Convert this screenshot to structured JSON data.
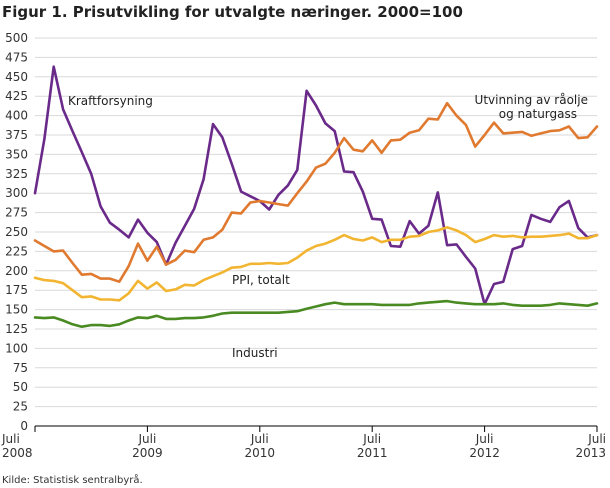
{
  "chart_data": {
    "type": "line",
    "title": "Figur 1. Prisutvikling for utvalgte næringer. 2000=100",
    "source": "Kilde: Statistisk sentralbyrå.",
    "ylim": [
      0,
      500
    ],
    "yticks": [
      0,
      25,
      50,
      75,
      100,
      125,
      150,
      175,
      200,
      225,
      250,
      275,
      300,
      325,
      350,
      375,
      400,
      425,
      450,
      475,
      500
    ],
    "xticks": [
      {
        "month": 0,
        "line1": "Juli",
        "line2": "2008"
      },
      {
        "month": 12,
        "line1": "Juli",
        "line2": "2009"
      },
      {
        "month": 24,
        "line1": "Juli",
        "line2": "2010"
      },
      {
        "month": 36,
        "line1": "Juli",
        "line2": "2011"
      },
      {
        "month": 48,
        "line1": "Juli",
        "line2": "2012"
      },
      {
        "month": 60,
        "line1": "Juli",
        "line2": "2013"
      }
    ],
    "series": [
      {
        "name": "Kraftforsyning",
        "label_lines": [
          "Kraftforsyning"
        ],
        "color": "#6a2a8a",
        "values": [
          300,
          370,
          463,
          408,
          380,
          353,
          325,
          283,
          262,
          253,
          243,
          266,
          249,
          237,
          208,
          236,
          258,
          280,
          318,
          389,
          372,
          338,
          302,
          296,
          290,
          279,
          298,
          310,
          330,
          432,
          413,
          390,
          380,
          328,
          327,
          302,
          267,
          266,
          232,
          231,
          264,
          248,
          258,
          301,
          233,
          234,
          218,
          203,
          157,
          183,
          186,
          228,
          232,
          272,
          267,
          263,
          282,
          290,
          255,
          243,
          246
        ]
      },
      {
        "name": "Utvinning av råolje og naturgass",
        "label_lines": [
          "Utvinning av råolje",
          "og naturgass"
        ],
        "color": "#e07a30",
        "values": [
          239,
          232,
          225,
          226,
          210,
          195,
          196,
          190,
          190,
          186,
          206,
          235,
          213,
          231,
          208,
          214,
          226,
          224,
          240,
          243,
          253,
          275,
          274,
          288,
          290,
          288,
          286,
          284,
          300,
          315,
          333,
          338,
          352,
          371,
          356,
          354,
          368,
          352,
          368,
          369,
          378,
          381,
          396,
          395,
          416,
          400,
          388,
          360,
          375,
          391,
          377,
          378,
          379,
          374,
          377,
          380,
          381,
          386,
          371,
          372,
          386
        ]
      },
      {
        "name": "PPI, totalt",
        "label_lines": [
          "PPI, totalt"
        ],
        "color": "#f2b531",
        "values": [
          191,
          188,
          187,
          184,
          175,
          166,
          167,
          163,
          163,
          162,
          171,
          187,
          177,
          185,
          174,
          176,
          182,
          181,
          188,
          193,
          198,
          204,
          205,
          209,
          209,
          210,
          209,
          210,
          217,
          226,
          232,
          235,
          240,
          246,
          241,
          239,
          243,
          237,
          240,
          240,
          244,
          245,
          250,
          252,
          256,
          252,
          246,
          237,
          241,
          246,
          244,
          245,
          243,
          244,
          244,
          245,
          246,
          248,
          242,
          242,
          246
        ]
      },
      {
        "name": "Industri",
        "label_lines": [
          "Industri"
        ],
        "color": "#4a8a22",
        "values": [
          140,
          139,
          140,
          136,
          131,
          128,
          130,
          130,
          129,
          131,
          136,
          140,
          139,
          142,
          138,
          138,
          139,
          139,
          140,
          142,
          145,
          146,
          146,
          146,
          146,
          146,
          146,
          147,
          148,
          151,
          154,
          157,
          159,
          157,
          157,
          157,
          157,
          156,
          156,
          156,
          156,
          158,
          159,
          160,
          161,
          159,
          158,
          157,
          157,
          157,
          158,
          156,
          155,
          155,
          155,
          156,
          158,
          157,
          156,
          155,
          158
        ]
      }
    ]
  }
}
